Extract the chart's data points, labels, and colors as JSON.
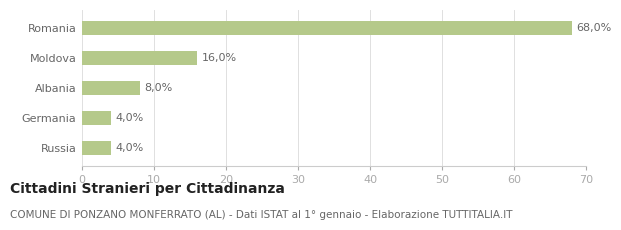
{
  "categories": [
    "Romania",
    "Moldova",
    "Albania",
    "Germania",
    "Russia"
  ],
  "values": [
    68.0,
    16.0,
    8.0,
    4.0,
    4.0
  ],
  "labels": [
    "68,0%",
    "16,0%",
    "8,0%",
    "4,0%",
    "4,0%"
  ],
  "bar_color": "#b5c98a",
  "background_color": "#ffffff",
  "xlim": [
    0,
    70
  ],
  "xticks": [
    0,
    10,
    20,
    30,
    40,
    50,
    60,
    70
  ],
  "title_bold": "Cittadini Stranieri per Cittadinanza",
  "subtitle": "COMUNE DI PONZANO MONFERRATO (AL) - Dati ISTAT al 1° gennaio - Elaborazione TUTTITALIA.IT",
  "title_fontsize": 10,
  "subtitle_fontsize": 7.5,
  "label_fontsize": 8,
  "tick_fontsize": 8,
  "bar_height": 0.45
}
